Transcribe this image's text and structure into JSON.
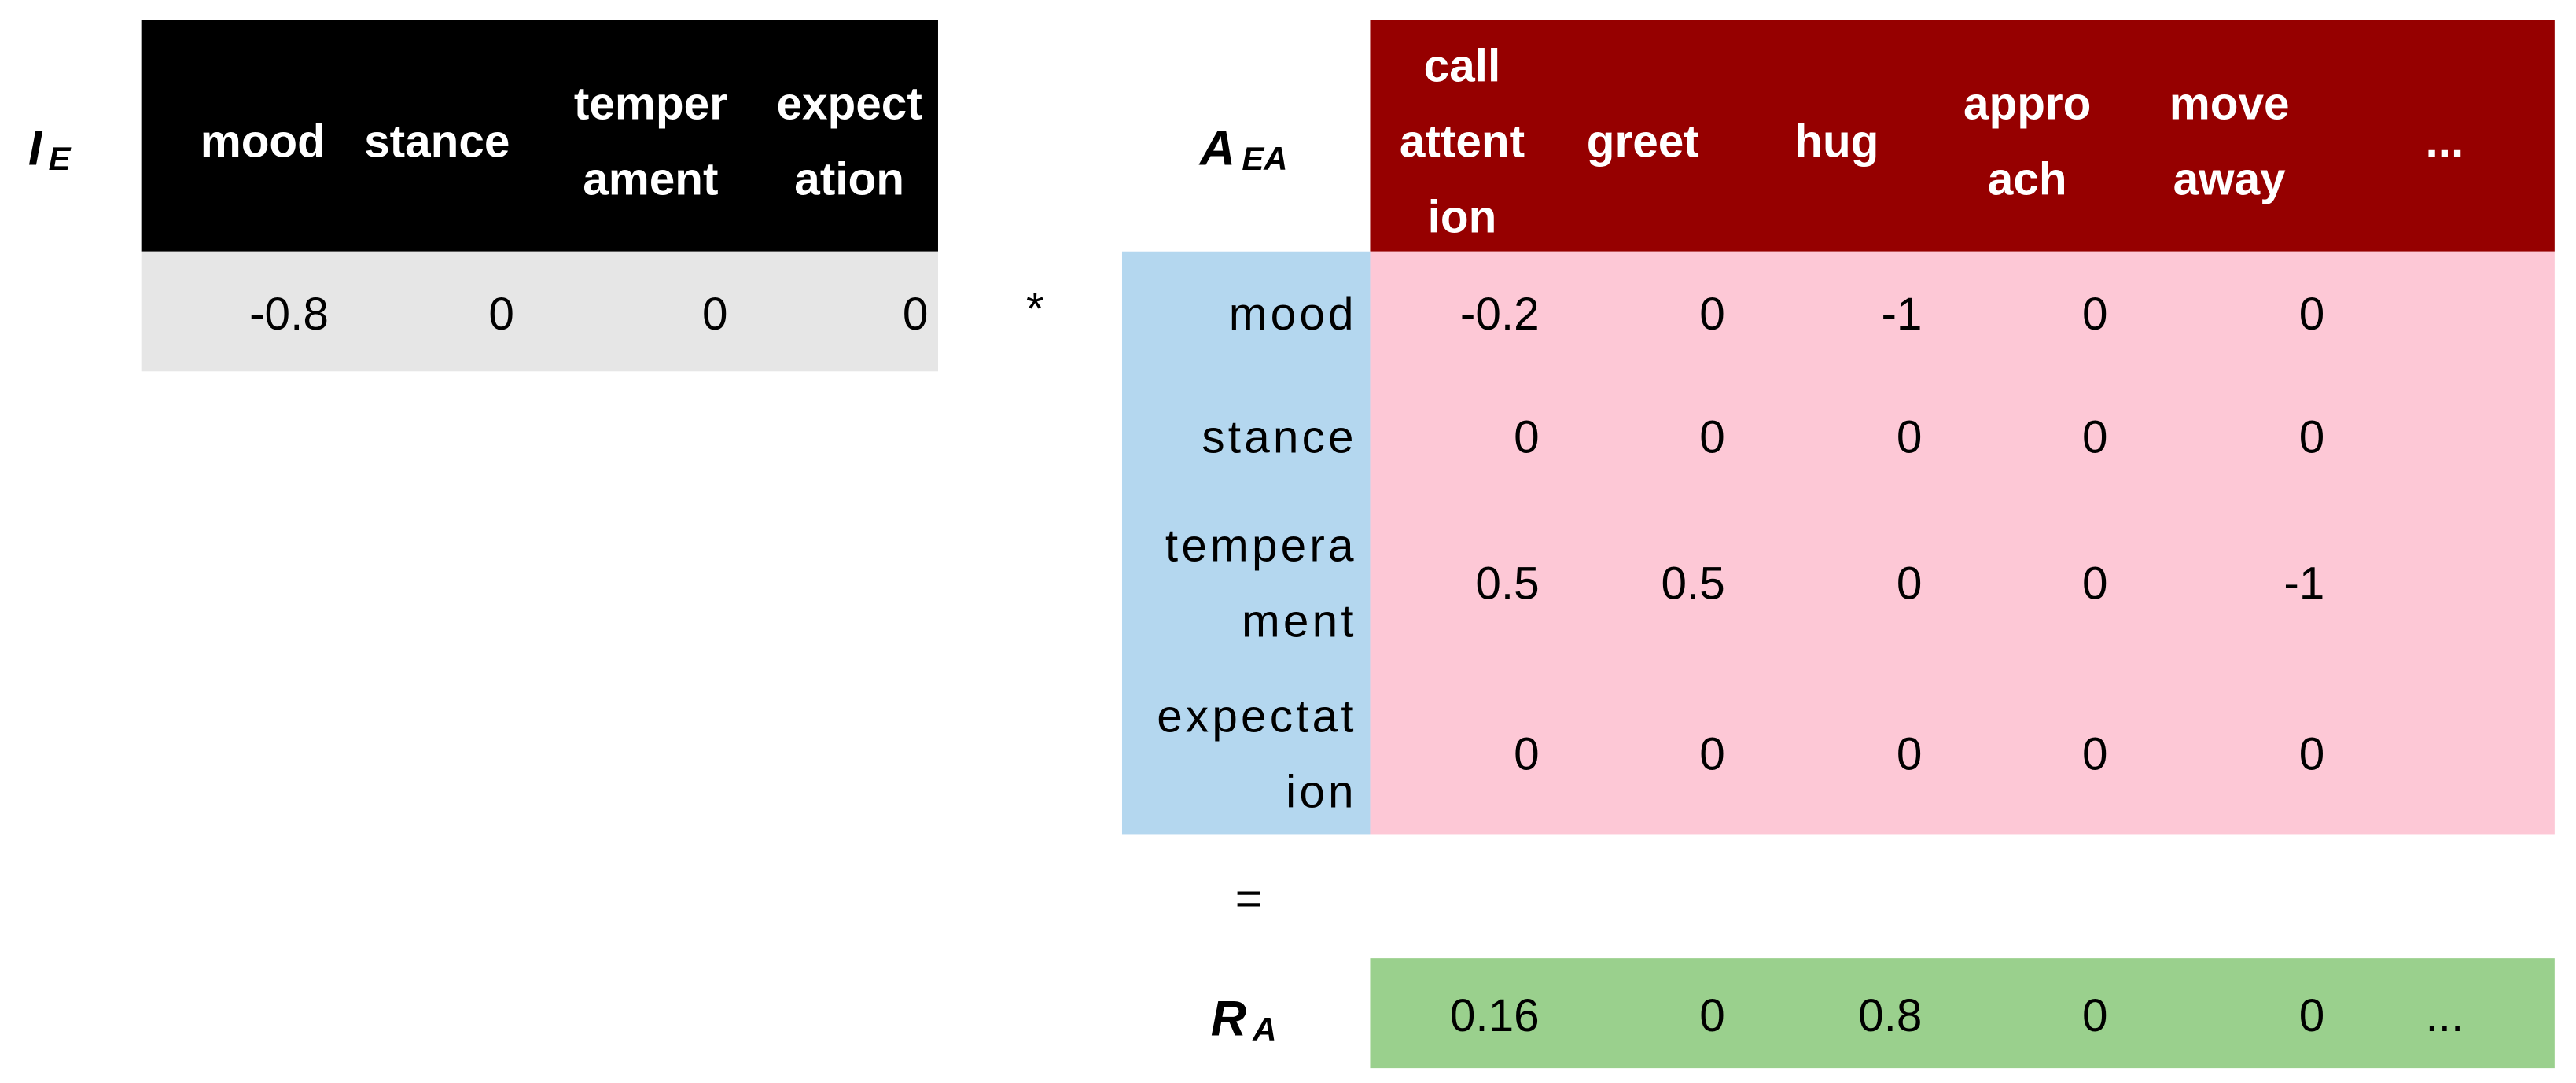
{
  "input": {
    "label_main": "I",
    "label_sub": "E",
    "headers": [
      [
        "mood"
      ],
      [
        "stance"
      ],
      [
        "temper",
        "ament"
      ],
      [
        "expect",
        "ation"
      ]
    ],
    "values": [
      -0.8,
      0,
      0,
      0
    ]
  },
  "operator_multiply": "*",
  "matrix": {
    "label_main": "A",
    "label_sub": "EA",
    "headers": [
      [
        "call",
        "attent",
        "ion"
      ],
      [
        "greet"
      ],
      [
        "hug"
      ],
      [
        "appro",
        "ach"
      ],
      [
        "move",
        "away"
      ],
      [
        "..."
      ]
    ],
    "rows": [
      {
        "label": [
          "mood"
        ],
        "values": [
          -0.2,
          0,
          -1,
          0,
          0
        ]
      },
      {
        "label": [
          "stance"
        ],
        "values": [
          0,
          0,
          0,
          0,
          0
        ]
      },
      {
        "label": [
          "tempera",
          "ment"
        ],
        "values": [
          0.5,
          0.5,
          0,
          0,
          -1
        ]
      },
      {
        "label": [
          "expectat",
          "ion"
        ],
        "values": [
          0,
          0,
          0,
          0,
          0
        ]
      }
    ]
  },
  "operator_equals": "=",
  "result": {
    "label_main": "R",
    "label_sub": "A",
    "values": [
      0.16,
      0,
      0.8,
      0,
      0,
      "..."
    ]
  }
}
